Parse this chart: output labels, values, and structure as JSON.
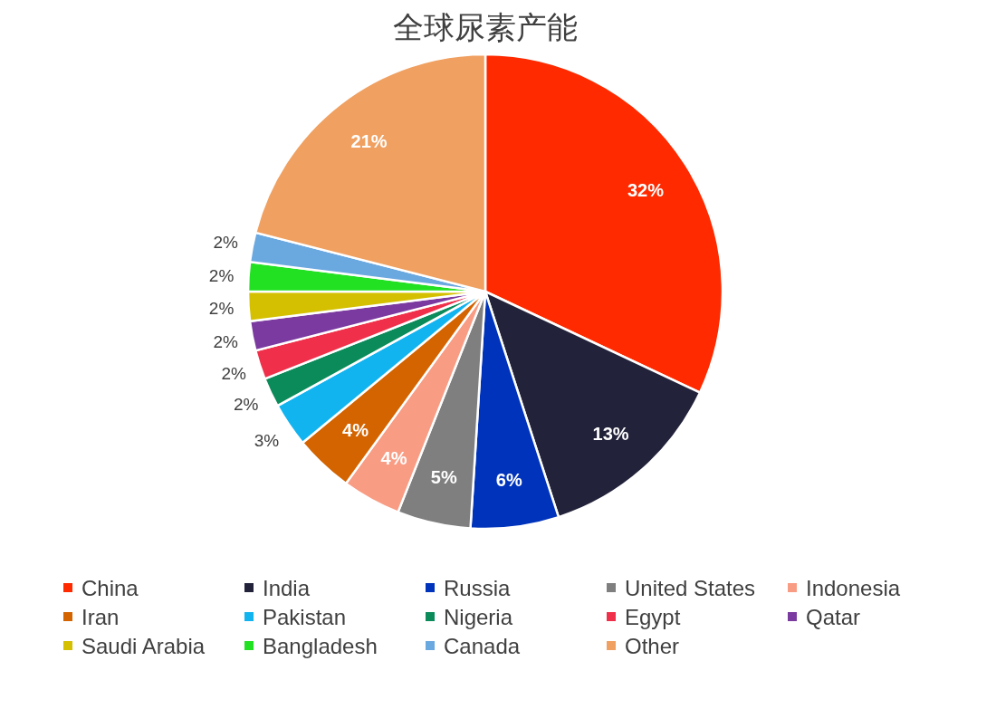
{
  "chart_data": {
    "type": "pie",
    "title": "全球尿素产能",
    "categories": [
      "China",
      "India",
      "Russia",
      "United States",
      "Indonesia",
      "Iran",
      "Pakistan",
      "Nigeria",
      "Egypt",
      "Qatar",
      "Saudi Arabia",
      "Bangladesh",
      "Canada",
      "Other"
    ],
    "values": [
      32,
      13,
      6,
      5,
      4,
      4,
      3,
      2,
      2,
      2,
      2,
      2,
      2,
      21
    ],
    "value_labels": [
      "32%",
      "13%",
      "6%",
      "5%",
      "4%",
      "4%",
      "3%",
      "2%",
      "2%",
      "2%",
      "2%",
      "2%",
      "2%",
      "21%"
    ],
    "colors": [
      "#ff2a00",
      "#22223a",
      "#0033bb",
      "#7f7f7f",
      "#f99c84",
      "#d46400",
      "#12b4f0",
      "#0b8a5a",
      "#f0304a",
      "#7b3aa0",
      "#d4c000",
      "#22e022",
      "#6aa8e0",
      "#f0a060"
    ],
    "legend": "bottom"
  }
}
